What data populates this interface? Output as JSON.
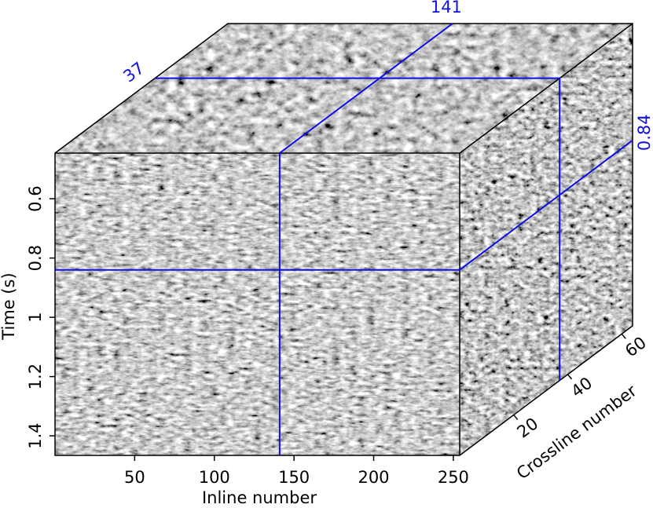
{
  "chart_data": {
    "type": "cube",
    "xlabel": "Inline number",
    "ylabel": "Time (s)",
    "zlabel": "Crossline number",
    "xlim": [
      0,
      254
    ],
    "xticks": [
      50,
      100,
      150,
      200,
      250
    ],
    "ylim": [
      0.446,
      1.466
    ],
    "yticks": [
      0.6,
      0.8,
      1,
      1.2,
      1.4
    ],
    "zlim": [
      0,
      64
    ],
    "zticks": [
      20,
      40,
      60
    ],
    "slices": {
      "inline": 141,
      "crossline": 37,
      "time": 0.84
    },
    "slice_color": "#1010e0"
  }
}
